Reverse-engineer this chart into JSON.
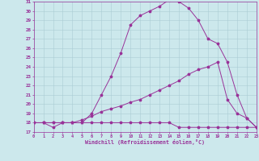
{
  "xlabel": "Windchill (Refroidissement éolien,°C)",
  "bg_color": "#cce8ec",
  "grid_color": "#aacdd4",
  "line_color": "#993399",
  "xmin": 0,
  "xmax": 23,
  "ymin": 17,
  "ymax": 31,
  "line1_x": [
    0,
    1,
    2,
    3,
    4,
    5,
    6,
    7,
    8,
    9,
    10,
    11,
    12,
    13,
    14,
    15,
    16,
    17,
    18,
    19,
    20,
    21,
    22,
    23
  ],
  "line1_y": [
    18,
    18,
    17.5,
    18,
    18,
    18,
    18,
    18,
    18,
    18,
    18,
    18,
    18,
    18,
    18,
    17.5,
    17.5,
    17.5,
    17.5,
    17.5,
    17.5,
    17.5,
    17.5,
    17.5
  ],
  "line2_x": [
    0,
    1,
    2,
    3,
    4,
    5,
    6,
    7,
    8,
    9,
    10,
    11,
    12,
    13,
    14,
    15,
    16,
    17,
    18,
    19,
    20,
    21,
    22,
    23
  ],
  "line2_y": [
    18,
    18,
    18,
    18,
    18,
    18.3,
    18.7,
    19.2,
    19.5,
    19.8,
    20.2,
    20.5,
    21.0,
    21.5,
    22.0,
    22.5,
    23.2,
    23.7,
    24.0,
    24.5,
    20.5,
    19.0,
    18.5,
    17.5
  ],
  "line3_x": [
    1,
    2,
    3,
    4,
    5,
    6,
    7,
    8,
    9,
    10,
    11,
    12,
    13,
    14,
    15,
    16,
    17,
    18,
    19,
    20,
    21,
    22,
    23
  ],
  "line3_y": [
    18,
    18,
    18,
    18,
    18,
    19.0,
    21.0,
    23.0,
    25.5,
    28.5,
    29.5,
    30.0,
    30.5,
    31.2,
    31.0,
    30.3,
    29.0,
    27.0,
    26.5,
    24.5,
    21.0,
    18.5,
    17.5
  ]
}
